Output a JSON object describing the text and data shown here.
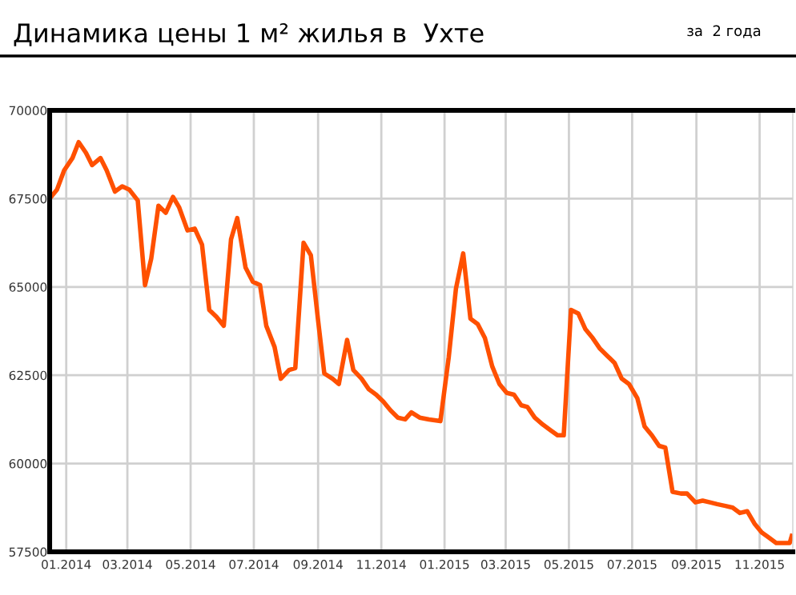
{
  "chart_data": {
    "type": "line",
    "title": "Динамика цены 1 м² жилья в  Ухте",
    "annotations": [
      "за  2 года"
    ],
    "x": [
      "2013-12-16",
      "2013-12-23",
      "2013-12-30",
      "2014-01-07",
      "2014-01-13",
      "2014-01-20",
      "2014-01-26",
      "2014-02-03",
      "2014-02-09",
      "2014-02-17",
      "2014-02-24",
      "2014-03-03",
      "2014-03-11",
      "2014-03-18",
      "2014-03-24",
      "2014-03-31",
      "2014-04-07",
      "2014-04-14",
      "2014-04-20",
      "2014-04-28",
      "2014-05-05",
      "2014-05-12",
      "2014-05-19",
      "2014-05-26",
      "2014-06-02",
      "2014-06-09",
      "2014-06-15",
      "2014-06-23",
      "2014-06-30",
      "2014-07-07",
      "2014-07-13",
      "2014-07-21",
      "2014-07-27",
      "2014-08-04",
      "2014-08-10",
      "2014-08-18",
      "2014-08-25",
      "2014-09-01",
      "2014-09-07",
      "2014-09-15",
      "2014-09-21",
      "2014-09-29",
      "2014-10-05",
      "2014-10-13",
      "2014-10-20",
      "2014-10-27",
      "2014-11-03",
      "2014-11-10",
      "2014-11-17",
      "2014-11-24",
      "2014-11-30",
      "2014-12-08",
      "2014-12-17",
      "2014-12-28",
      "2015-01-05",
      "2015-01-12",
      "2015-01-19",
      "2015-01-26",
      "2015-02-02",
      "2015-02-09",
      "2015-02-16",
      "2015-02-23",
      "2015-03-02",
      "2015-03-09",
      "2015-03-16",
      "2015-03-22",
      "2015-03-29",
      "2015-04-06",
      "2015-04-13",
      "2015-04-20",
      "2015-04-26",
      "2015-05-03",
      "2015-05-10",
      "2015-05-17",
      "2015-05-24",
      "2015-05-31",
      "2015-06-07",
      "2015-06-14",
      "2015-06-21",
      "2015-06-28",
      "2015-07-06",
      "2015-07-13",
      "2015-07-20",
      "2015-07-27",
      "2015-08-02",
      "2015-08-09",
      "2015-08-17",
      "2015-08-23",
      "2015-08-31",
      "2015-09-07",
      "2015-09-14",
      "2015-09-21",
      "2015-09-29",
      "2015-10-06",
      "2015-10-13",
      "2015-10-20",
      "2015-10-27",
      "2015-11-03",
      "2015-11-10",
      "2015-11-17",
      "2015-11-25",
      "2015-11-30",
      "2015-12-02"
    ],
    "series": [
      {
        "color": "#ff5000",
        "values": [
          67500,
          67750,
          68300,
          68650,
          69100,
          68800,
          68450,
          68650,
          68300,
          67700,
          67850,
          67750,
          67450,
          65050,
          65800,
          67300,
          67100,
          67550,
          67250,
          66600,
          66650,
          66200,
          64350,
          64150,
          63900,
          66350,
          66950,
          65550,
          65150,
          65050,
          63900,
          63300,
          62400,
          62650,
          62700,
          66250,
          65900,
          64050,
          62550,
          62400,
          62250,
          63500,
          62650,
          62400,
          62100,
          61950,
          61750,
          61500,
          61300,
          61250,
          61450,
          61300,
          61250,
          61200,
          63000,
          64950,
          65950,
          64100,
          63950,
          63550,
          62750,
          62250,
          62000,
          61950,
          61650,
          61600,
          61300,
          61100,
          60950,
          60800,
          60800,
          64350,
          64250,
          63800,
          63550,
          63250,
          63050,
          62850,
          62400,
          62250,
          61850,
          61050,
          60800,
          60500,
          60450,
          59200,
          59150,
          59150,
          58900,
          58950,
          58900,
          58850,
          58800,
          58750,
          58600,
          58650,
          58300,
          58050,
          57900,
          57750,
          57750,
          57750,
          57950
        ]
      }
    ],
    "xlim": [
      "2013-12-16",
      "2015-12-03"
    ],
    "xticks": [
      {
        "value": "2014-01-01",
        "label": "01.2014"
      },
      {
        "value": "2014-03-01",
        "label": "03.2014"
      },
      {
        "value": "2014-05-01",
        "label": "05.2014"
      },
      {
        "value": "2014-07-01",
        "label": "07.2014"
      },
      {
        "value": "2014-09-01",
        "label": "09.2014"
      },
      {
        "value": "2014-11-01",
        "label": "11.2014"
      },
      {
        "value": "2015-01-01",
        "label": "01.2015"
      },
      {
        "value": "2015-03-01",
        "label": "03.2015"
      },
      {
        "value": "2015-05-01",
        "label": "05.2015"
      },
      {
        "value": "2015-07-01",
        "label": "07.2015"
      },
      {
        "value": "2015-09-01",
        "label": "09.2015"
      },
      {
        "value": "2015-11-01",
        "label": "11.2015"
      }
    ],
    "ylim": [
      57500,
      70000
    ],
    "yticks": [
      57500,
      60000,
      62500,
      65000,
      67500,
      70000
    ],
    "grid": true,
    "marker": "none",
    "line_style": "solid"
  }
}
